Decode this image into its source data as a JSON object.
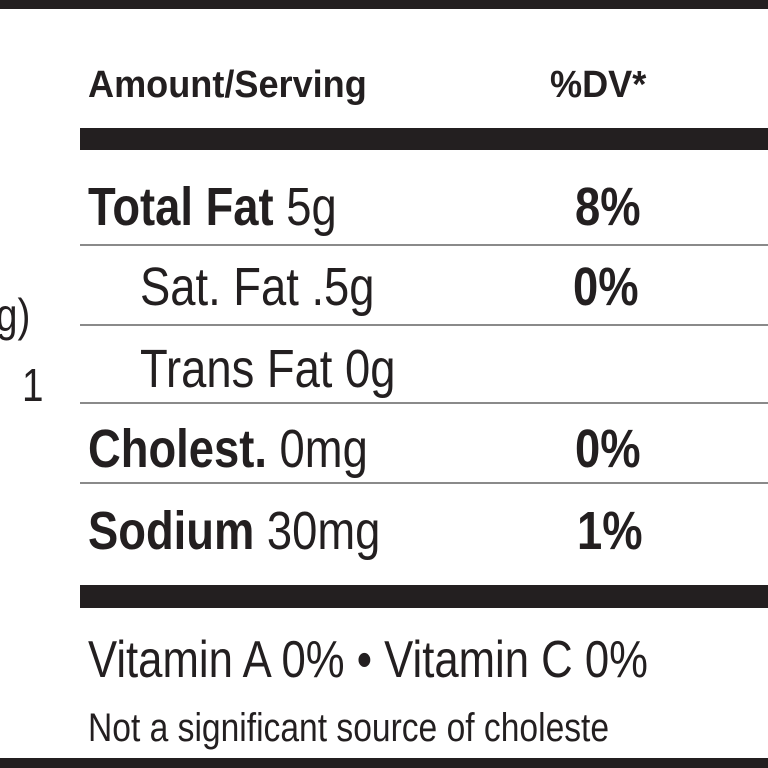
{
  "left_fragments": [
    "g)",
    "1"
  ],
  "header": {
    "amount": "Amount/Serving",
    "dv": "%DV*"
  },
  "rows": [
    {
      "name": "Total Fat",
      "amount": "5g",
      "dv": "8%"
    },
    {
      "name": "Sat. Fat",
      "amount": ".5g",
      "dv": "0%"
    },
    {
      "name": "Trans Fat",
      "amount": "0g"
    },
    {
      "name": "Cholest.",
      "amount": "0mg",
      "dv": "0%"
    },
    {
      "name": "Sodium",
      "amount": "30mg",
      "dv": "1%"
    }
  ],
  "vitamins": "Vitamin A 0% • Vitamin C 0%",
  "footnote": "Not a significant source of choleste"
}
